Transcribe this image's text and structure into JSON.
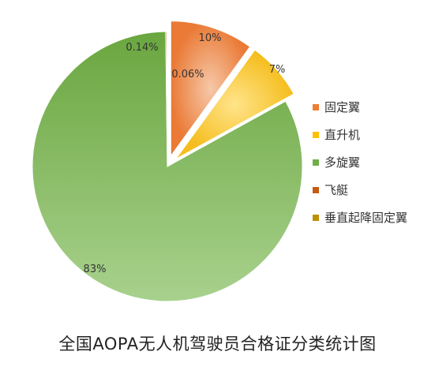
{
  "chart_data": {
    "type": "pie",
    "title": "全国AOPA无人机驾驶员合格证分类统计图",
    "slices": [
      {
        "name": "固定翼",
        "value": 10,
        "label": "10%",
        "color": "#ed7d31",
        "exploded": true
      },
      {
        "name": "直升机",
        "value": 7,
        "label": "7%",
        "color": "#ffc000",
        "exploded": true
      },
      {
        "name": "多旋翼",
        "value": 83,
        "label": "83%",
        "color": "#70ad47",
        "exploded": false
      },
      {
        "name": "飞艇",
        "value": 0.14,
        "label": "0.14%",
        "color": "#c55a11",
        "exploded": false
      },
      {
        "name": "垂直起降固定翼",
        "value": 0.06,
        "label": "0.06%",
        "color": "#bf8f00",
        "exploded": false
      }
    ],
    "legend_position": "right"
  }
}
